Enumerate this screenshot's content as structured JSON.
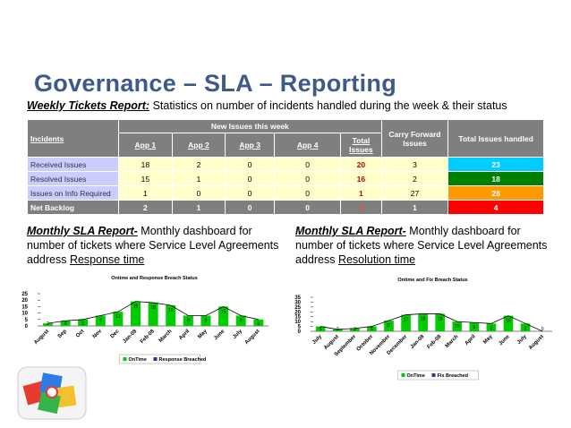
{
  "title": "Governance – SLA – Reporting",
  "weekly": {
    "label": "Weekly Tickets Report:",
    "text": " Statistics on number of incidents handled during the week & their status"
  },
  "table": {
    "headers": {
      "incidents": "Incidents",
      "new_issues": "New Issues this week",
      "apps": [
        "App 1",
        "App 2",
        "App 3",
        "App 4"
      ],
      "total": "Total Issues",
      "carry": "Carry Forward Issues",
      "handled": "Total Issues handled"
    },
    "rows": [
      [
        "Received Issues",
        18,
        2,
        0,
        0,
        20,
        3,
        23
      ],
      [
        "Resolved Issues",
        15,
        1,
        0,
        0,
        16,
        2,
        18
      ],
      [
        "Issues on Info Required",
        1,
        0,
        0,
        0,
        1,
        27,
        28
      ],
      [
        "Net Backlog",
        2,
        1,
        0,
        0,
        3,
        1,
        4
      ]
    ]
  },
  "left_report": {
    "label": "Monthly SLA Report-",
    "text": " Monthly dashboard for number of tickets where Service Level Agreements address ",
    "link": "Response time"
  },
  "right_report": {
    "label": "Monthly SLA Report-",
    "text": " Monthly dashboard for number of tickets where Service Level Agreements address ",
    "link": "Resolution time"
  },
  "chart_data": [
    {
      "type": "bar",
      "title": "Ontime and Response Breach Status",
      "categories": [
        "August",
        "Sep",
        "Oct",
        "Nov",
        "Dec",
        "Jan-08",
        "Feb-08",
        "March",
        "April",
        "May",
        "June",
        "July",
        "August"
      ],
      "series": [
        {
          "name": "OnTime",
          "color": "#00cc00",
          "values": [
            2,
            4,
            5,
            8,
            11,
            19,
            18,
            16,
            8,
            8,
            15,
            8,
            5
          ]
        },
        {
          "name": "Response Breached",
          "color": "#333399",
          "values": [
            0,
            0,
            0,
            0,
            0,
            0,
            0,
            0,
            0,
            0,
            0,
            0,
            0
          ]
        }
      ],
      "ylim": [
        0,
        25
      ],
      "yticks": [
        0,
        5,
        10,
        15,
        20,
        25
      ]
    },
    {
      "type": "bar",
      "title": "Ontime and Fix Breach Status",
      "categories": [
        "July",
        "August",
        "September",
        "October",
        "November",
        "December",
        "Jan-08",
        "Feb-08",
        "March",
        "April",
        "May",
        "June",
        "July",
        "August"
      ],
      "series": [
        {
          "name": "OnTime",
          "color": "#00cc00",
          "values": [
            5,
            2,
            3,
            5,
            11,
            17,
            18,
            18,
            10,
            9,
            8,
            16,
            8,
            0
          ]
        },
        {
          "name": "Fix Breached",
          "color": "#333399",
          "values": [
            0,
            0,
            0,
            0,
            0,
            0,
            0,
            0,
            0,
            0,
            0,
            0,
            0,
            0
          ]
        }
      ],
      "ylim": [
        0,
        35
      ],
      "yticks": [
        0,
        5,
        10,
        15,
        20,
        25,
        30,
        35
      ]
    }
  ]
}
